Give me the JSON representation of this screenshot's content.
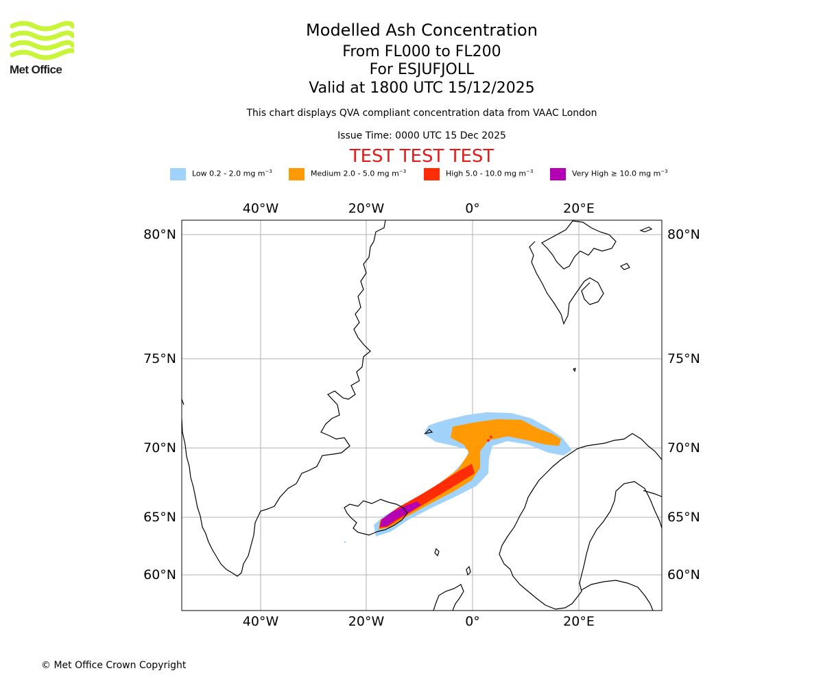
{
  "brand": {
    "name": "Met Office",
    "logo_color": "#c8f53a"
  },
  "header": {
    "title": "Modelled Ash Concentration",
    "level_range": "From FL000 to FL200",
    "volcano": "For ESJUFJOLL",
    "valid_time": "Valid at 1800 UTC 15/12/2025",
    "description": "This chart displays QVA compliant concentration data from VAAC London",
    "issue_time": "Issue Time: 0000 UTC 15 Dec 2025",
    "test_banner": "TEST TEST TEST"
  },
  "legend": [
    {
      "label": "Low 0.2 - 2.0 mg m",
      "unit_sup": "−3",
      "color": "#a0d2fa"
    },
    {
      "label": "Medium 2.0 - 5.0 mg m",
      "unit_sup": "−3",
      "color": "#ff9a05"
    },
    {
      "label": "High 5.0 - 10.0 mg m",
      "unit_sup": "−3",
      "color": "#ff2d05"
    },
    {
      "label": "Very High ≥ 10.0 mg m",
      "unit_sup": "−3",
      "color": "#b400b4"
    }
  ],
  "map": {
    "longitude_labels": [
      "40°W",
      "20°W",
      "0°",
      "20°E"
    ],
    "latitude_labels": [
      "80°N",
      "75°N",
      "70°N",
      "65°N",
      "60°N"
    ],
    "gridline_color": "#b0b0b0",
    "coastline_color": "#000000"
  },
  "footer": {
    "copyright": "© Met Office Crown Copyright"
  }
}
